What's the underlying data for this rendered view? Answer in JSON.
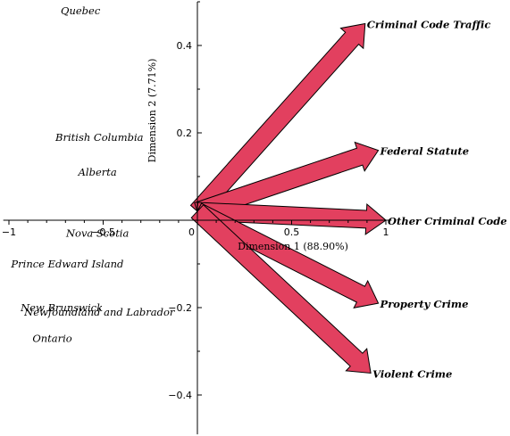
{
  "chart_data": {
    "type": "biplot",
    "colors": {
      "arrow_fill": "#e2405f",
      "arrow_stroke": "#000000",
      "axis": "#000000"
    },
    "xlabel": "Dimension 1 (88.90%)",
    "ylabel": "Dimension 2 (7.71%)",
    "xlim": [
      -1.03,
      1.03
    ],
    "ylim": [
      -0.49,
      0.5
    ],
    "x_ticks": [
      {
        "value": -1,
        "label": "−1"
      },
      {
        "value": -0.5,
        "label": "−0.5"
      },
      {
        "value": 0,
        "label": "0"
      },
      {
        "value": 0.5,
        "label": "0.5"
      },
      {
        "value": 1,
        "label": "1"
      }
    ],
    "y_ticks": [
      {
        "value": 0.4,
        "label": "0.4"
      },
      {
        "value": 0.2,
        "label": "0.2"
      },
      {
        "value": -0.2,
        "label": "−0.2"
      },
      {
        "value": -0.4,
        "label": "−0.4"
      }
    ],
    "provinces": [
      {
        "name": "Quebec",
        "x": -0.62,
        "y": 0.48
      },
      {
        "name": "British Columbia",
        "x": -0.52,
        "y": 0.19
      },
      {
        "name": "Alberta",
        "x": -0.53,
        "y": 0.11
      },
      {
        "name": "Nova Scotia",
        "x": -0.53,
        "y": -0.03
      },
      {
        "name": "Prince Edward Island",
        "x": -0.69,
        "y": -0.1
      },
      {
        "name": "New Brunswick",
        "x": -0.72,
        "y": -0.2
      },
      {
        "name": "Newfoundland and Labrador",
        "x": -0.52,
        "y": -0.21
      },
      {
        "name": "Ontario",
        "x": -0.77,
        "y": -0.27
      }
    ],
    "variables": [
      {
        "name": "Criminal Code Traffic",
        "x": 0.89,
        "y": 0.45
      },
      {
        "name": "Federal Statute",
        "x": 0.96,
        "y": 0.16
      },
      {
        "name": "Other Criminal Code",
        "x": 1.0,
        "y": 0.0
      },
      {
        "name": "Property Crime",
        "x": 0.96,
        "y": -0.19
      },
      {
        "name": "Violent Crime",
        "x": 0.92,
        "y": -0.35
      }
    ]
  }
}
